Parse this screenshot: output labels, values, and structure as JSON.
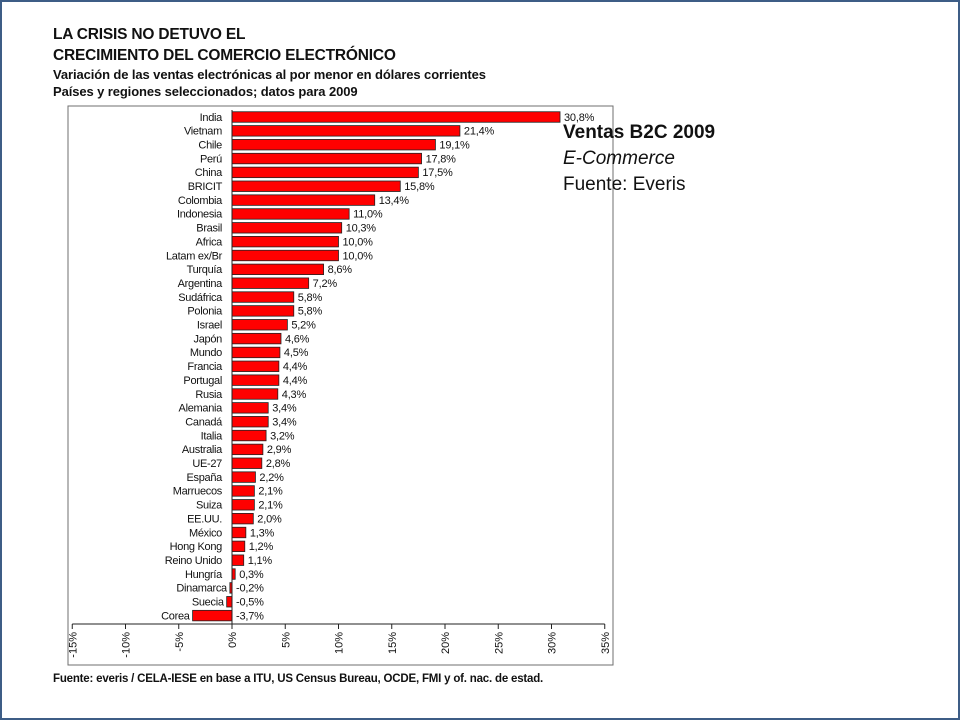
{
  "slide": {
    "title_line1": "LA CRISIS NO DETUVO EL",
    "title_line2": "CRECIMIENTO DEL COMERCIO ELECTRÓNICO",
    "subtitle_line1": "Variación de las ventas electrónicas al por menor en dólares corrientes",
    "subtitle_line2": "Países y regiones seleccionados; datos para 2009",
    "source": "Fuente: everis / CELA-IESE en base a ITU, US Census Bureau, OCDE, FMI y of. nac. de estad.",
    "overlay": {
      "heading": "Ventas B2C 2009",
      "subheading": "E-Commerce",
      "credit": "Fuente: Everis"
    }
  },
  "chart_data": {
    "type": "bar",
    "orientation": "horizontal",
    "title": "Variación de las ventas electrónicas al por menor en dólares corrientes",
    "bar_color": "#ff0000",
    "categories": [
      "India",
      "Vietnam",
      "Chile",
      "Perú",
      "China",
      "BRICIT",
      "Colombia",
      "Indonesia",
      "Brasil",
      "Africa",
      "Latam ex/Br",
      "Turquía",
      "Argentina",
      "Sudáfrica",
      "Polonia",
      "Israel",
      "Japón",
      "Mundo",
      "Francia",
      "Portugal",
      "Rusia",
      "Alemania",
      "Canadá",
      "Italia",
      "Australia",
      "UE-27",
      "España",
      "Marruecos",
      "Suiza",
      "EE.UU.",
      "México",
      "Hong Kong",
      "Reino Unido",
      "Hungría",
      "Dinamarca",
      "Suecia",
      "Corea"
    ],
    "values": [
      30.8,
      21.4,
      19.1,
      17.8,
      17.5,
      15.8,
      13.4,
      11.0,
      10.3,
      10.0,
      10.0,
      8.6,
      7.2,
      5.8,
      5.8,
      5.2,
      4.6,
      4.5,
      4.4,
      4.4,
      4.3,
      3.4,
      3.4,
      3.2,
      2.9,
      2.8,
      2.2,
      2.1,
      2.1,
      2.0,
      1.3,
      1.2,
      1.1,
      0.3,
      -0.2,
      -0.5,
      -3.7
    ],
    "value_labels": [
      "30,8%",
      "21,4%",
      "19,1%",
      "17,8%",
      "17,5%",
      "15,8%",
      "13,4%",
      "11,0%",
      "10,3%",
      "10,0%",
      "10,0%",
      "8,6%",
      "7,2%",
      "5,8%",
      "5,8%",
      "5,2%",
      "4,6%",
      "4,5%",
      "4,4%",
      "4,4%",
      "4,3%",
      "3,4%",
      "3,4%",
      "3,2%",
      "2,9%",
      "2,8%",
      "2,2%",
      "2,1%",
      "2,1%",
      "2,0%",
      "1,3%",
      "1,2%",
      "1,1%",
      "0,3%",
      "-0,2%",
      "-0,5%",
      "-3,7%"
    ],
    "xlim": [
      -15,
      35
    ],
    "xticks": [
      -15,
      -10,
      -5,
      0,
      5,
      10,
      15,
      20,
      25,
      30,
      35
    ],
    "xtick_labels": [
      "-15%",
      "-10%",
      "-5%",
      "0%",
      "5%",
      "10%",
      "15%",
      "20%",
      "25%",
      "30%",
      "35%"
    ],
    "grid": false
  }
}
